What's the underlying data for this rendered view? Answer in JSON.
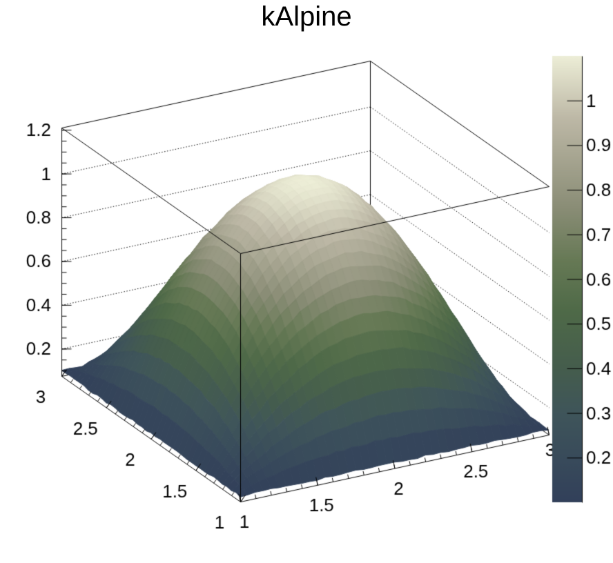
{
  "title": "kAlpine",
  "colors": {
    "background": "#FFFFFF",
    "frame": "#000000",
    "text": "#000000"
  },
  "chart_data": {
    "type": "surface",
    "title": "kAlpine",
    "formula": "z = 0.1 + (1 - (x-2)^2) * (1 - (y-2)^2)",
    "x_range": [
      1,
      3
    ],
    "y_range": [
      1,
      3
    ],
    "surface_min": 0.1,
    "surface_peak": {
      "x": 2,
      "y": 2,
      "z": 1.1
    },
    "grid_on": true,
    "x_axis": {
      "major_ticks": [
        1,
        1.5,
        2,
        2.5,
        3
      ],
      "tick_labels": [
        "1",
        "1.5",
        "2",
        "2.5",
        "3"
      ],
      "minor_step": 0.1
    },
    "y_axis": {
      "major_ticks": [
        1,
        1.5,
        2,
        2.5,
        3
      ],
      "tick_labels": [
        "1",
        "1.5",
        "2",
        "2.5",
        "3"
      ],
      "minor_step": 0.1
    },
    "z_axis": {
      "min": 0.075,
      "max": 1.21,
      "major_ticks": [
        0.2,
        0.4,
        0.6,
        0.8,
        1.0,
        1.2
      ],
      "tick_labels": [
        "0.2",
        "0.4",
        "0.6",
        "0.8",
        "1",
        "1.2"
      ],
      "minor_step": 0.05,
      "gridlines": [
        0.2,
        0.4,
        0.6,
        0.8,
        1.0
      ]
    },
    "color_axis": {
      "min": 0.1,
      "max": 1.1,
      "major_ticks": [
        0.2,
        0.3,
        0.4,
        0.5,
        0.6,
        0.7,
        0.8,
        0.9,
        1.0
      ],
      "tick_labels": [
        "0.2",
        "0.3",
        "0.4",
        "0.5",
        "0.6",
        "0.7",
        "0.8",
        "0.9",
        "1"
      ]
    },
    "palette": {
      "name": "kAlpine",
      "stops": [
        {
          "t": 0.0,
          "color": "#32405A"
        },
        {
          "t": 0.09,
          "color": "#384A5B"
        },
        {
          "t": 0.2,
          "color": "#3F555A"
        },
        {
          "t": 0.3,
          "color": "#455D4D"
        },
        {
          "t": 0.43,
          "color": "#4F6A48"
        },
        {
          "t": 0.54,
          "color": "#667955"
        },
        {
          "t": 0.66,
          "color": "#8A8D76"
        },
        {
          "t": 0.86,
          "color": "#BDB8A6"
        },
        {
          "t": 1.0,
          "color": "#EDEED7"
        }
      ]
    }
  }
}
